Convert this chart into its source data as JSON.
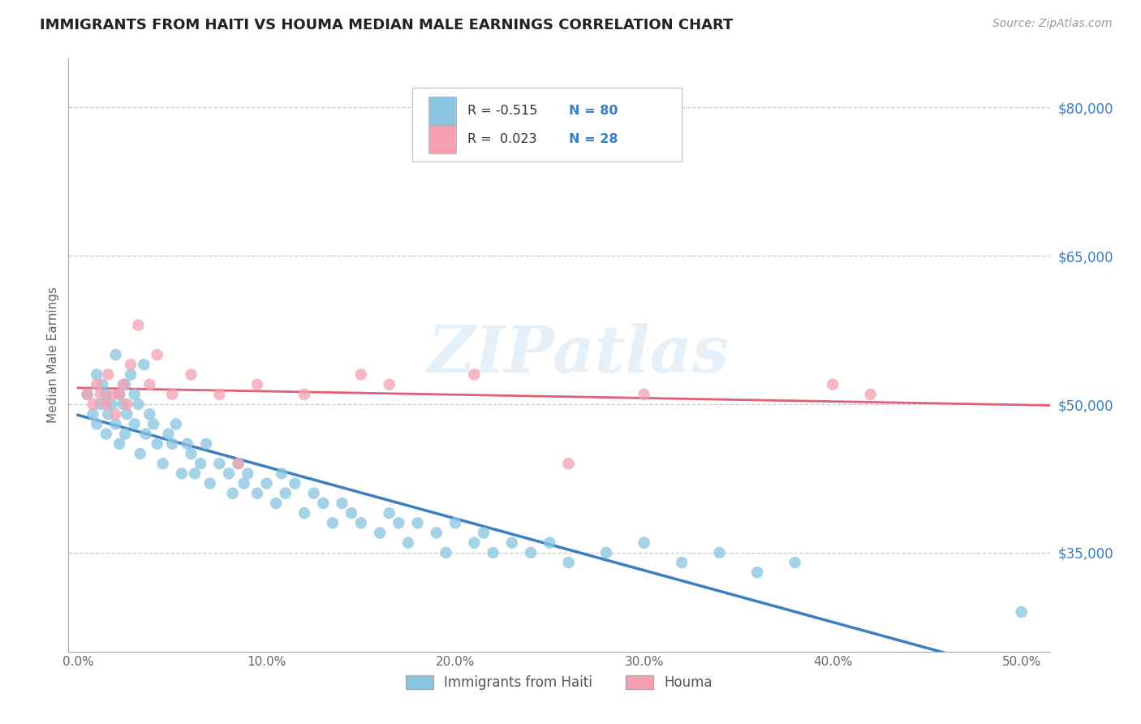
{
  "title": "IMMIGRANTS FROM HAITI VS HOUMA MEDIAN MALE EARNINGS CORRELATION CHART",
  "source": "Source: ZipAtlas.com",
  "ylabel": "Median Male Earnings",
  "x_tick_labels": [
    "0.0%",
    "10.0%",
    "20.0%",
    "30.0%",
    "40.0%",
    "50.0%"
  ],
  "x_tick_positions": [
    0.0,
    0.1,
    0.2,
    0.3,
    0.4,
    0.5
  ],
  "y_tick_labels": [
    "$35,000",
    "$50,000",
    "$65,000",
    "$80,000"
  ],
  "y_tick_values": [
    35000,
    50000,
    65000,
    80000
  ],
  "xlim": [
    -0.005,
    0.515
  ],
  "ylim": [
    25000,
    85000
  ],
  "legend_label1": "Immigrants from Haiti",
  "legend_label2": "Houma",
  "blue_color": "#89c4e1",
  "pink_color": "#f4a0b0",
  "blue_line_color": "#3a7fc1",
  "pink_line_color": "#e0607a",
  "watermark": "ZIPatlas",
  "haiti_x": [
    0.005,
    0.008,
    0.01,
    0.01,
    0.012,
    0.013,
    0.015,
    0.015,
    0.016,
    0.018,
    0.02,
    0.02,
    0.022,
    0.022,
    0.024,
    0.025,
    0.025,
    0.026,
    0.028,
    0.03,
    0.03,
    0.032,
    0.033,
    0.035,
    0.036,
    0.038,
    0.04,
    0.042,
    0.045,
    0.048,
    0.05,
    0.052,
    0.055,
    0.058,
    0.06,
    0.062,
    0.065,
    0.068,
    0.07,
    0.075,
    0.08,
    0.082,
    0.085,
    0.088,
    0.09,
    0.095,
    0.1,
    0.105,
    0.108,
    0.11,
    0.115,
    0.12,
    0.125,
    0.13,
    0.135,
    0.14,
    0.145,
    0.15,
    0.16,
    0.165,
    0.17,
    0.175,
    0.18,
    0.19,
    0.195,
    0.2,
    0.21,
    0.215,
    0.22,
    0.23,
    0.24,
    0.25,
    0.26,
    0.28,
    0.3,
    0.32,
    0.34,
    0.36,
    0.38,
    0.5
  ],
  "haiti_y": [
    51000,
    49000,
    53000,
    48000,
    50000,
    52000,
    51000,
    47000,
    49000,
    50000,
    55000,
    48000,
    51000,
    46000,
    50000,
    52000,
    47000,
    49000,
    53000,
    51000,
    48000,
    50000,
    45000,
    54000,
    47000,
    49000,
    48000,
    46000,
    44000,
    47000,
    46000,
    48000,
    43000,
    46000,
    45000,
    43000,
    44000,
    46000,
    42000,
    44000,
    43000,
    41000,
    44000,
    42000,
    43000,
    41000,
    42000,
    40000,
    43000,
    41000,
    42000,
    39000,
    41000,
    40000,
    38000,
    40000,
    39000,
    38000,
    37000,
    39000,
    38000,
    36000,
    38000,
    37000,
    35000,
    38000,
    36000,
    37000,
    35000,
    36000,
    35000,
    36000,
    34000,
    35000,
    36000,
    34000,
    35000,
    33000,
    34000,
    29000
  ],
  "houma_x": [
    0.005,
    0.008,
    0.01,
    0.012,
    0.015,
    0.016,
    0.018,
    0.02,
    0.022,
    0.024,
    0.026,
    0.028,
    0.032,
    0.038,
    0.042,
    0.05,
    0.06,
    0.075,
    0.085,
    0.095,
    0.12,
    0.15,
    0.165,
    0.21,
    0.26,
    0.3,
    0.4,
    0.42
  ],
  "houma_y": [
    51000,
    50000,
    52000,
    51000,
    50000,
    53000,
    51000,
    49000,
    51000,
    52000,
    50000,
    54000,
    58000,
    52000,
    55000,
    51000,
    53000,
    51000,
    44000,
    52000,
    51000,
    53000,
    52000,
    53000,
    44000,
    51000,
    52000,
    51000
  ]
}
